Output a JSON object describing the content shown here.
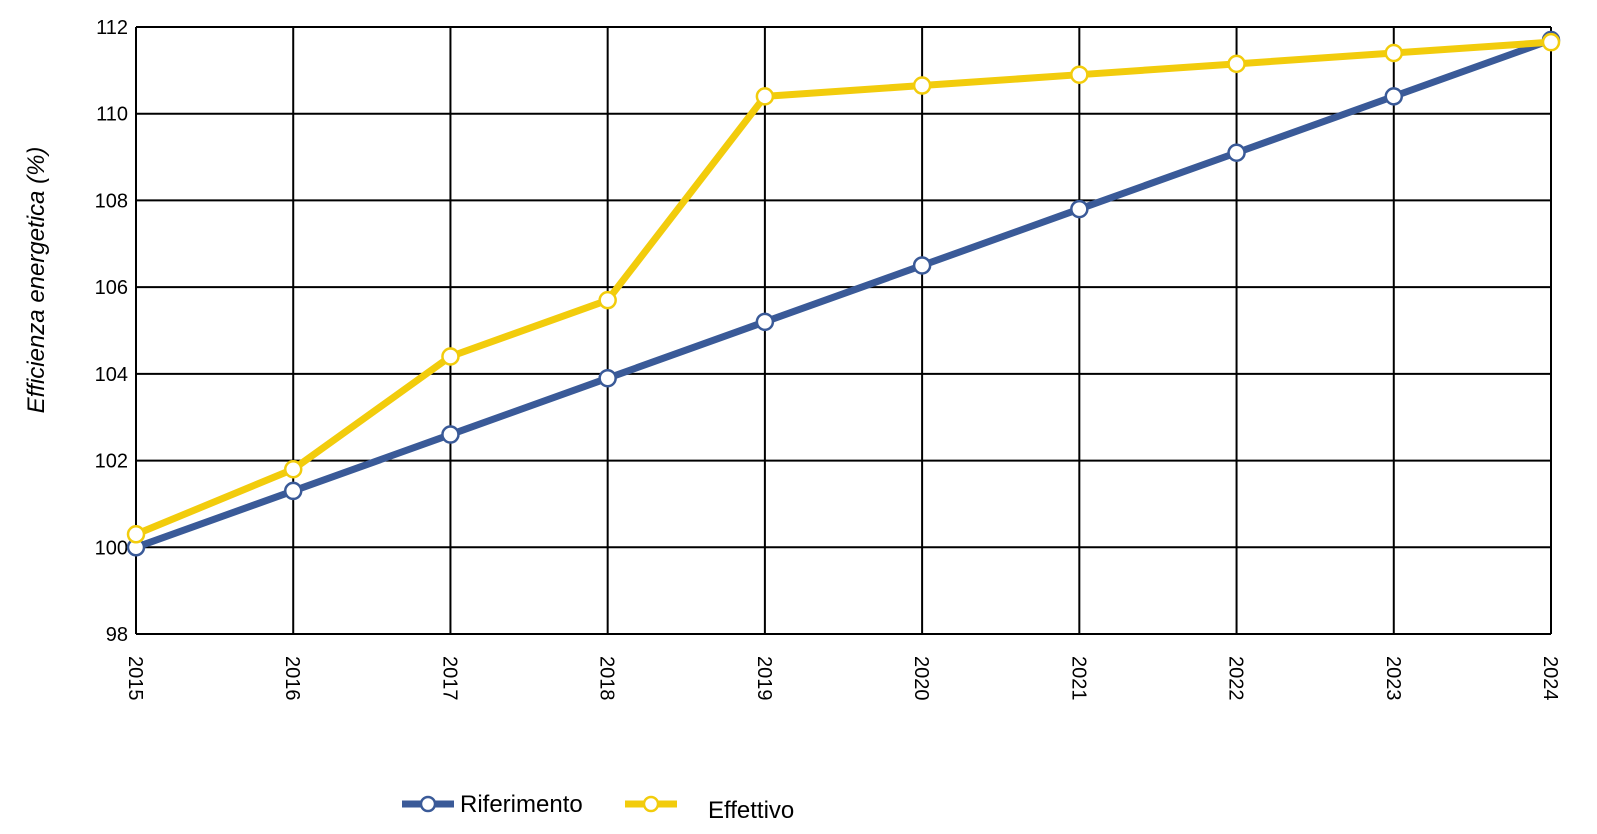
{
  "chart_data": {
    "type": "line",
    "title": "",
    "xlabel": "",
    "ylabel": "Efficienza energetica  (%)",
    "x": [
      "2015",
      "2016",
      "2017",
      "2018",
      "2019",
      "2020",
      "2021",
      "2022",
      "2023",
      "2024"
    ],
    "ylim": [
      98,
      112
    ],
    "yticks": [
      98,
      100,
      102,
      104,
      106,
      108,
      110,
      112
    ],
    "grid": true,
    "legend": "bottom",
    "series": [
      {
        "name": "Riferimento",
        "color": "#3a5a98",
        "values": [
          100.0,
          101.3,
          102.6,
          103.9,
          105.2,
          106.5,
          107.8,
          109.1,
          110.4,
          111.7
        ]
      },
      {
        "name": "Effettivo",
        "color": "#f2cc0c",
        "values": [
          100.3,
          101.8,
          104.4,
          105.7,
          110.4,
          110.65,
          110.9,
          111.15,
          111.4,
          111.65
        ]
      }
    ]
  }
}
